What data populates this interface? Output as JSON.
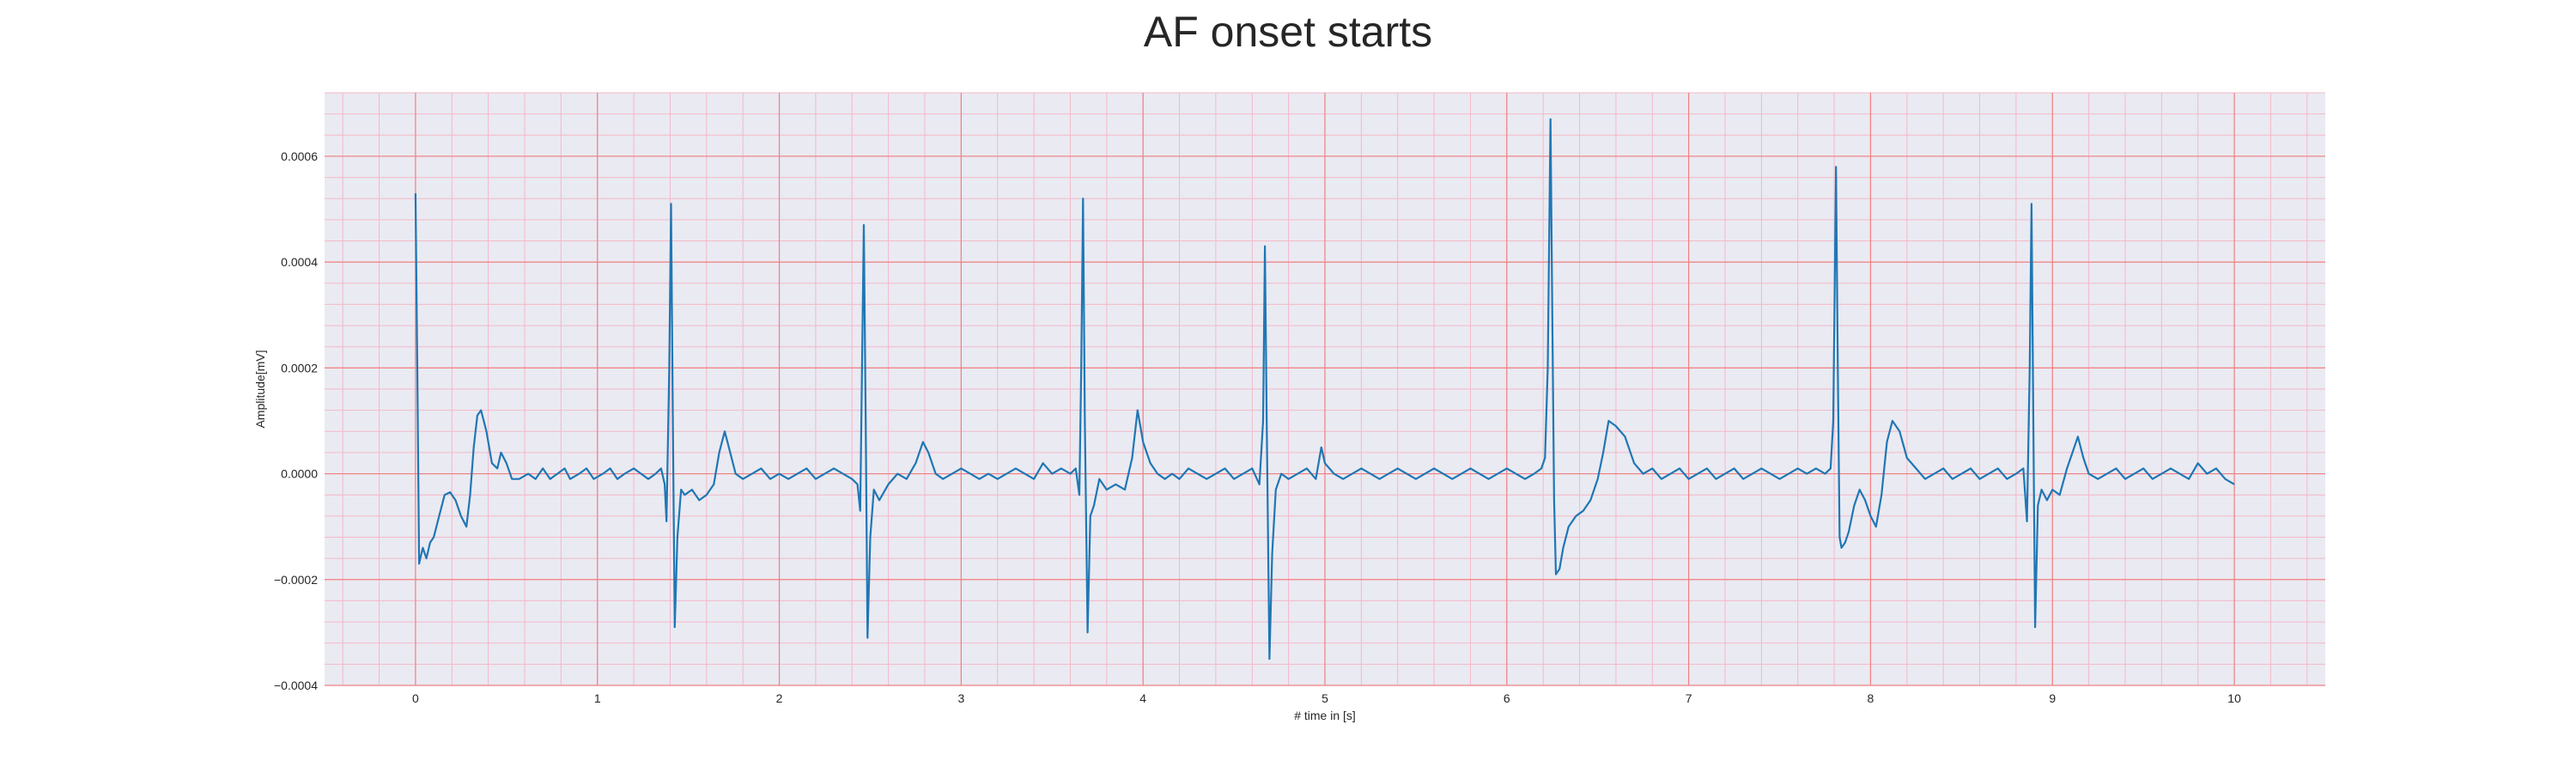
{
  "chart_data": {
    "type": "line",
    "title": "AF onset starts",
    "xlabel": "# time in [s]",
    "ylabel": "Amplitude[mV]",
    "xlim": [
      -0.5,
      10.5
    ],
    "ylim": [
      -0.0004,
      0.00072
    ],
    "x_ticks": [
      0,
      1,
      2,
      3,
      4,
      5,
      6,
      7,
      8,
      9,
      10
    ],
    "x_tick_labels": [
      "0",
      "1",
      "2",
      "3",
      "4",
      "5",
      "6",
      "7",
      "8",
      "9",
      "10"
    ],
    "y_ticks": [
      -0.0004,
      -0.0002,
      0.0,
      0.0002,
      0.0004,
      0.0006
    ],
    "y_tick_labels": [
      "−0.0004",
      "−0.0002",
      "0.0000",
      "0.0002",
      "0.0004",
      "0.0006"
    ],
    "grid": true,
    "colors": {
      "line": "#1f77b4",
      "major_grid": "#f08080",
      "minor_grid": "#f4b8c8",
      "background": "#eaeaf2"
    },
    "series": [
      {
        "points": [
          [
            0.0,
            0.00053
          ],
          [
            0.01,
            0.0002
          ],
          [
            0.02,
            -0.00017
          ],
          [
            0.04,
            -0.00014
          ],
          [
            0.06,
            -0.00016
          ],
          [
            0.08,
            -0.00013
          ],
          [
            0.1,
            -0.00012
          ],
          [
            0.13,
            -8e-05
          ],
          [
            0.16,
            -4e-05
          ],
          [
            0.19,
            -3.5e-05
          ],
          [
            0.22,
            -5e-05
          ],
          [
            0.25,
            -8e-05
          ],
          [
            0.28,
            -0.0001
          ],
          [
            0.3,
            -4e-05
          ],
          [
            0.32,
            5e-05
          ],
          [
            0.34,
            0.00011
          ],
          [
            0.36,
            0.00012
          ],
          [
            0.39,
            8e-05
          ],
          [
            0.42,
            2e-05
          ],
          [
            0.45,
            1e-05
          ],
          [
            0.47,
            4e-05
          ],
          [
            0.5,
            2e-05
          ],
          [
            0.53,
            -1e-05
          ],
          [
            0.57,
            -1e-05
          ],
          [
            0.62,
            0.0
          ],
          [
            0.66,
            -1e-05
          ],
          [
            0.7,
            1e-05
          ],
          [
            0.74,
            -1e-05
          ],
          [
            0.78,
            0.0
          ],
          [
            0.82,
            1e-05
          ],
          [
            0.85,
            -1e-05
          ],
          [
            0.9,
            0.0
          ],
          [
            0.94,
            1e-05
          ],
          [
            0.98,
            -1e-05
          ],
          [
            1.03,
            0.0
          ],
          [
            1.07,
            1e-05
          ],
          [
            1.11,
            -1e-05
          ],
          [
            1.15,
            0.0
          ],
          [
            1.2,
            1e-05
          ],
          [
            1.24,
            0.0
          ],
          [
            1.28,
            -1e-05
          ],
          [
            1.32,
            0.0
          ],
          [
            1.35,
            1e-05
          ],
          [
            1.37,
            -2e-05
          ],
          [
            1.38,
            -9e-05
          ],
          [
            1.395,
            0.0002
          ],
          [
            1.405,
            0.00051
          ],
          [
            1.415,
            0.0001
          ],
          [
            1.425,
            -0.00029
          ],
          [
            1.44,
            -0.00012
          ],
          [
            1.46,
            -3e-05
          ],
          [
            1.48,
            -4e-05
          ],
          [
            1.52,
            -3e-05
          ],
          [
            1.56,
            -5e-05
          ],
          [
            1.6,
            -4e-05
          ],
          [
            1.64,
            -2e-05
          ],
          [
            1.67,
            4e-05
          ],
          [
            1.7,
            8e-05
          ],
          [
            1.73,
            4e-05
          ],
          [
            1.76,
            0.0
          ],
          [
            1.8,
            -1e-05
          ],
          [
            1.85,
            0.0
          ],
          [
            1.9,
            1e-05
          ],
          [
            1.95,
            -1e-05
          ],
          [
            2.0,
            0.0
          ],
          [
            2.05,
            -1e-05
          ],
          [
            2.1,
            0.0
          ],
          [
            2.15,
            1e-05
          ],
          [
            2.2,
            -1e-05
          ],
          [
            2.25,
            0.0
          ],
          [
            2.3,
            1e-05
          ],
          [
            2.35,
            0.0
          ],
          [
            2.4,
            -1e-05
          ],
          [
            2.43,
            -2e-05
          ],
          [
            2.445,
            -7e-05
          ],
          [
            2.455,
            0.0002
          ],
          [
            2.465,
            0.00047
          ],
          [
            2.475,
            0.0001
          ],
          [
            2.485,
            -0.00031
          ],
          [
            2.5,
            -0.00012
          ],
          [
            2.52,
            -3e-05
          ],
          [
            2.55,
            -5e-05
          ],
          [
            2.6,
            -2e-05
          ],
          [
            2.65,
            0.0
          ],
          [
            2.7,
            -1e-05
          ],
          [
            2.75,
            2e-05
          ],
          [
            2.79,
            6e-05
          ],
          [
            2.82,
            4e-05
          ],
          [
            2.86,
            0.0
          ],
          [
            2.9,
            -1e-05
          ],
          [
            2.95,
            0.0
          ],
          [
            3.0,
            1e-05
          ],
          [
            3.05,
            0.0
          ],
          [
            3.1,
            -1e-05
          ],
          [
            3.15,
            0.0
          ],
          [
            3.2,
            -1e-05
          ],
          [
            3.25,
            0.0
          ],
          [
            3.3,
            1e-05
          ],
          [
            3.35,
            0.0
          ],
          [
            3.4,
            -1e-05
          ],
          [
            3.45,
            2e-05
          ],
          [
            3.5,
            0.0
          ],
          [
            3.55,
            1e-05
          ],
          [
            3.6,
            0.0
          ],
          [
            3.63,
            1e-05
          ],
          [
            3.65,
            -4e-05
          ],
          [
            3.66,
            0.0002
          ],
          [
            3.67,
            0.00052
          ],
          [
            3.68,
            0.0001
          ],
          [
            3.695,
            -0.0003
          ],
          [
            3.71,
            -8e-05
          ],
          [
            3.73,
            -6e-05
          ],
          [
            3.76,
            -1e-05
          ],
          [
            3.8,
            -3e-05
          ],
          [
            3.85,
            -2e-05
          ],
          [
            3.9,
            -3e-05
          ],
          [
            3.94,
            3e-05
          ],
          [
            3.97,
            0.00012
          ],
          [
            4.0,
            6e-05
          ],
          [
            4.04,
            2e-05
          ],
          [
            4.08,
            0.0
          ],
          [
            4.12,
            -1e-05
          ],
          [
            4.16,
            0.0
          ],
          [
            4.2,
            -1e-05
          ],
          [
            4.25,
            1e-05
          ],
          [
            4.3,
            0.0
          ],
          [
            4.35,
            -1e-05
          ],
          [
            4.4,
            0.0
          ],
          [
            4.45,
            1e-05
          ],
          [
            4.5,
            -1e-05
          ],
          [
            4.55,
            0.0
          ],
          [
            4.6,
            1e-05
          ],
          [
            4.64,
            -2e-05
          ],
          [
            4.66,
            0.0001
          ],
          [
            4.67,
            0.00043
          ],
          [
            4.68,
            0.0001
          ],
          [
            4.695,
            -0.00035
          ],
          [
            4.71,
            -0.00015
          ],
          [
            4.73,
            -3e-05
          ],
          [
            4.76,
            0.0
          ],
          [
            4.8,
            -1e-05
          ],
          [
            4.85,
            0.0
          ],
          [
            4.9,
            1e-05
          ],
          [
            4.95,
            -1e-05
          ],
          [
            4.98,
            5e-05
          ],
          [
            5.0,
            2e-05
          ],
          [
            5.05,
            0.0
          ],
          [
            5.1,
            -1e-05
          ],
          [
            5.15,
            0.0
          ],
          [
            5.2,
            1e-05
          ],
          [
            5.25,
            0.0
          ],
          [
            5.3,
            -1e-05
          ],
          [
            5.35,
            0.0
          ],
          [
            5.4,
            1e-05
          ],
          [
            5.45,
            0.0
          ],
          [
            5.5,
            -1e-05
          ],
          [
            5.55,
            0.0
          ],
          [
            5.6,
            1e-05
          ],
          [
            5.65,
            0.0
          ],
          [
            5.7,
            -1e-05
          ],
          [
            5.75,
            0.0
          ],
          [
            5.8,
            1e-05
          ],
          [
            5.85,
            0.0
          ],
          [
            5.9,
            -1e-05
          ],
          [
            5.95,
            0.0
          ],
          [
            6.0,
            1e-05
          ],
          [
            6.05,
            0.0
          ],
          [
            6.1,
            -1e-05
          ],
          [
            6.15,
            0.0
          ],
          [
            6.19,
            1e-05
          ],
          [
            6.21,
            3e-05
          ],
          [
            6.225,
            0.0002
          ],
          [
            6.24,
            0.00067
          ],
          [
            6.25,
            0.0003
          ],
          [
            6.26,
            -5e-05
          ],
          [
            6.27,
            -0.00019
          ],
          [
            6.29,
            -0.00018
          ],
          [
            6.31,
            -0.00014
          ],
          [
            6.34,
            -0.0001
          ],
          [
            6.38,
            -8e-05
          ],
          [
            6.42,
            -7e-05
          ],
          [
            6.46,
            -5e-05
          ],
          [
            6.5,
            -1e-05
          ],
          [
            6.53,
            4e-05
          ],
          [
            6.56,
            0.0001
          ],
          [
            6.6,
            9e-05
          ],
          [
            6.65,
            7e-05
          ],
          [
            6.7,
            2e-05
          ],
          [
            6.75,
            0.0
          ],
          [
            6.8,
            1e-05
          ],
          [
            6.85,
            -1e-05
          ],
          [
            6.9,
            0.0
          ],
          [
            6.95,
            1e-05
          ],
          [
            7.0,
            -1e-05
          ],
          [
            7.05,
            0.0
          ],
          [
            7.1,
            1e-05
          ],
          [
            7.15,
            -1e-05
          ],
          [
            7.2,
            0.0
          ],
          [
            7.25,
            1e-05
          ],
          [
            7.3,
            -1e-05
          ],
          [
            7.35,
            0.0
          ],
          [
            7.4,
            1e-05
          ],
          [
            7.45,
            0.0
          ],
          [
            7.5,
            -1e-05
          ],
          [
            7.55,
            0.0
          ],
          [
            7.6,
            1e-05
          ],
          [
            7.65,
            0.0
          ],
          [
            7.7,
            1e-05
          ],
          [
            7.75,
            0.0
          ],
          [
            7.78,
            1e-05
          ],
          [
            7.795,
            0.0001
          ],
          [
            7.81,
            0.00058
          ],
          [
            7.82,
            0.0002
          ],
          [
            7.83,
            -0.00012
          ],
          [
            7.84,
            -0.00014
          ],
          [
            7.86,
            -0.00013
          ],
          [
            7.88,
            -0.00011
          ],
          [
            7.91,
            -6e-05
          ],
          [
            7.94,
            -3e-05
          ],
          [
            7.97,
            -5e-05
          ],
          [
            8.0,
            -8e-05
          ],
          [
            8.03,
            -0.0001
          ],
          [
            8.06,
            -4e-05
          ],
          [
            8.09,
            6e-05
          ],
          [
            8.12,
            0.0001
          ],
          [
            8.16,
            8e-05
          ],
          [
            8.2,
            3e-05
          ],
          [
            8.25,
            1e-05
          ],
          [
            8.3,
            -1e-05
          ],
          [
            8.35,
            0.0
          ],
          [
            8.4,
            1e-05
          ],
          [
            8.45,
            -1e-05
          ],
          [
            8.5,
            0.0
          ],
          [
            8.55,
            1e-05
          ],
          [
            8.6,
            -1e-05
          ],
          [
            8.65,
            0.0
          ],
          [
            8.7,
            1e-05
          ],
          [
            8.75,
            -1e-05
          ],
          [
            8.8,
            0.0
          ],
          [
            8.84,
            1e-05
          ],
          [
            8.86,
            -9e-05
          ],
          [
            8.875,
            0.0002
          ],
          [
            8.885,
            0.00051
          ],
          [
            8.895,
            0.0001
          ],
          [
            8.905,
            -0.00029
          ],
          [
            8.92,
            -6e-05
          ],
          [
            8.94,
            -3e-05
          ],
          [
            8.97,
            -5e-05
          ],
          [
            9.0,
            -3e-05
          ],
          [
            9.04,
            -4e-05
          ],
          [
            9.08,
            1e-05
          ],
          [
            9.11,
            4e-05
          ],
          [
            9.14,
            7e-05
          ],
          [
            9.17,
            3e-05
          ],
          [
            9.2,
            0.0
          ],
          [
            9.25,
            -1e-05
          ],
          [
            9.3,
            0.0
          ],
          [
            9.35,
            1e-05
          ],
          [
            9.4,
            -1e-05
          ],
          [
            9.45,
            0.0
          ],
          [
            9.5,
            1e-05
          ],
          [
            9.55,
            -1e-05
          ],
          [
            9.6,
            0.0
          ],
          [
            9.65,
            1e-05
          ],
          [
            9.7,
            0.0
          ],
          [
            9.75,
            -1e-05
          ],
          [
            9.8,
            2e-05
          ],
          [
            9.85,
            0.0
          ],
          [
            9.9,
            1e-05
          ],
          [
            9.95,
            -1e-05
          ],
          [
            10.0,
            -2e-05
          ]
        ]
      }
    ]
  }
}
